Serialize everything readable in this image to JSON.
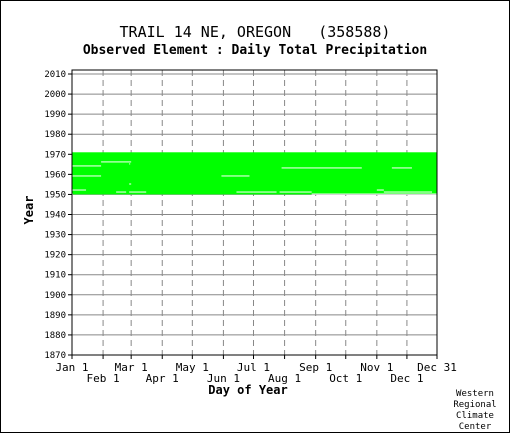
{
  "title": "TRAIL 14 NE, OREGON   (358588)",
  "subtitle": "Observed Element : Daily Total Precipitation",
  "credit": [
    "Western",
    "Regional",
    "Climate",
    "Center"
  ],
  "colors": {
    "data": "#00ff00",
    "grid": "#888888",
    "axis": "#000000"
  },
  "chart_data": {
    "type": "heatmap",
    "xlabel": "Day of Year",
    "ylabel": "Year",
    "xlim": [
      1,
      365
    ],
    "ylim": [
      1870,
      2012
    ],
    "yticks": [
      1870,
      1880,
      1890,
      1900,
      1910,
      1920,
      1930,
      1940,
      1950,
      1960,
      1970,
      1980,
      1990,
      2000,
      2010
    ],
    "xticks": [
      {
        "day": 1,
        "label": "Jan 1",
        "row": 0
      },
      {
        "day": 32,
        "label": "Feb 1",
        "row": 1
      },
      {
        "day": 60,
        "label": "Mar 1",
        "row": 0
      },
      {
        "day": 91,
        "label": "Apr 1",
        "row": 1
      },
      {
        "day": 121,
        "label": "May 1",
        "row": 0
      },
      {
        "day": 152,
        "label": "Jun 1",
        "row": 1
      },
      {
        "day": 182,
        "label": "Jul 1",
        "row": 0
      },
      {
        "day": 213,
        "label": "Aug 1",
        "row": 1
      },
      {
        "day": 244,
        "label": "Sep 1",
        "row": 0
      },
      {
        "day": 274,
        "label": "Oct 1",
        "row": 1
      },
      {
        "day": 305,
        "label": "Nov 1",
        "row": 0
      },
      {
        "day": 335,
        "label": "Dec 1",
        "row": 1
      },
      {
        "day": 365,
        "label": "Dec 31",
        "row": 0
      }
    ],
    "grid": true,
    "data_periods": [
      {
        "start_year": 1950,
        "start_day": 1,
        "end_year": 1970,
        "end_day": 120
      }
    ],
    "missing": [
      {
        "year": 1964,
        "start_day": 1,
        "end_day": 30
      },
      {
        "year": 1959,
        "start_day": 1,
        "end_day": 30
      },
      {
        "year": 1952,
        "start_day": 1,
        "end_day": 15
      },
      {
        "year": 1951,
        "start_day": 45,
        "end_day": 55
      },
      {
        "year": 1966,
        "start_day": 30,
        "end_day": 60
      },
      {
        "year": 1955,
        "start_day": 58,
        "end_day": 60
      },
      {
        "year": 1965,
        "start_day": 58,
        "end_day": 59
      },
      {
        "year": 1951,
        "start_day": 58,
        "end_day": 75
      },
      {
        "year": 1959,
        "start_day": 150,
        "end_day": 178
      },
      {
        "year": 1951,
        "start_day": 165,
        "end_day": 205
      },
      {
        "year": 1963,
        "start_day": 210,
        "end_day": 290
      },
      {
        "year": 1951,
        "start_day": 208,
        "end_day": 240
      },
      {
        "year": 1950,
        "start_day": 240,
        "end_day": 365
      },
      {
        "year": 1952,
        "start_day": 305,
        "end_day": 312
      },
      {
        "year": 1963,
        "start_day": 320,
        "end_day": 340
      },
      {
        "year": 1950,
        "start_day": 1,
        "end_day": 1
      },
      {
        "year": 1951,
        "start_day": 312,
        "end_day": 360
      }
    ]
  }
}
